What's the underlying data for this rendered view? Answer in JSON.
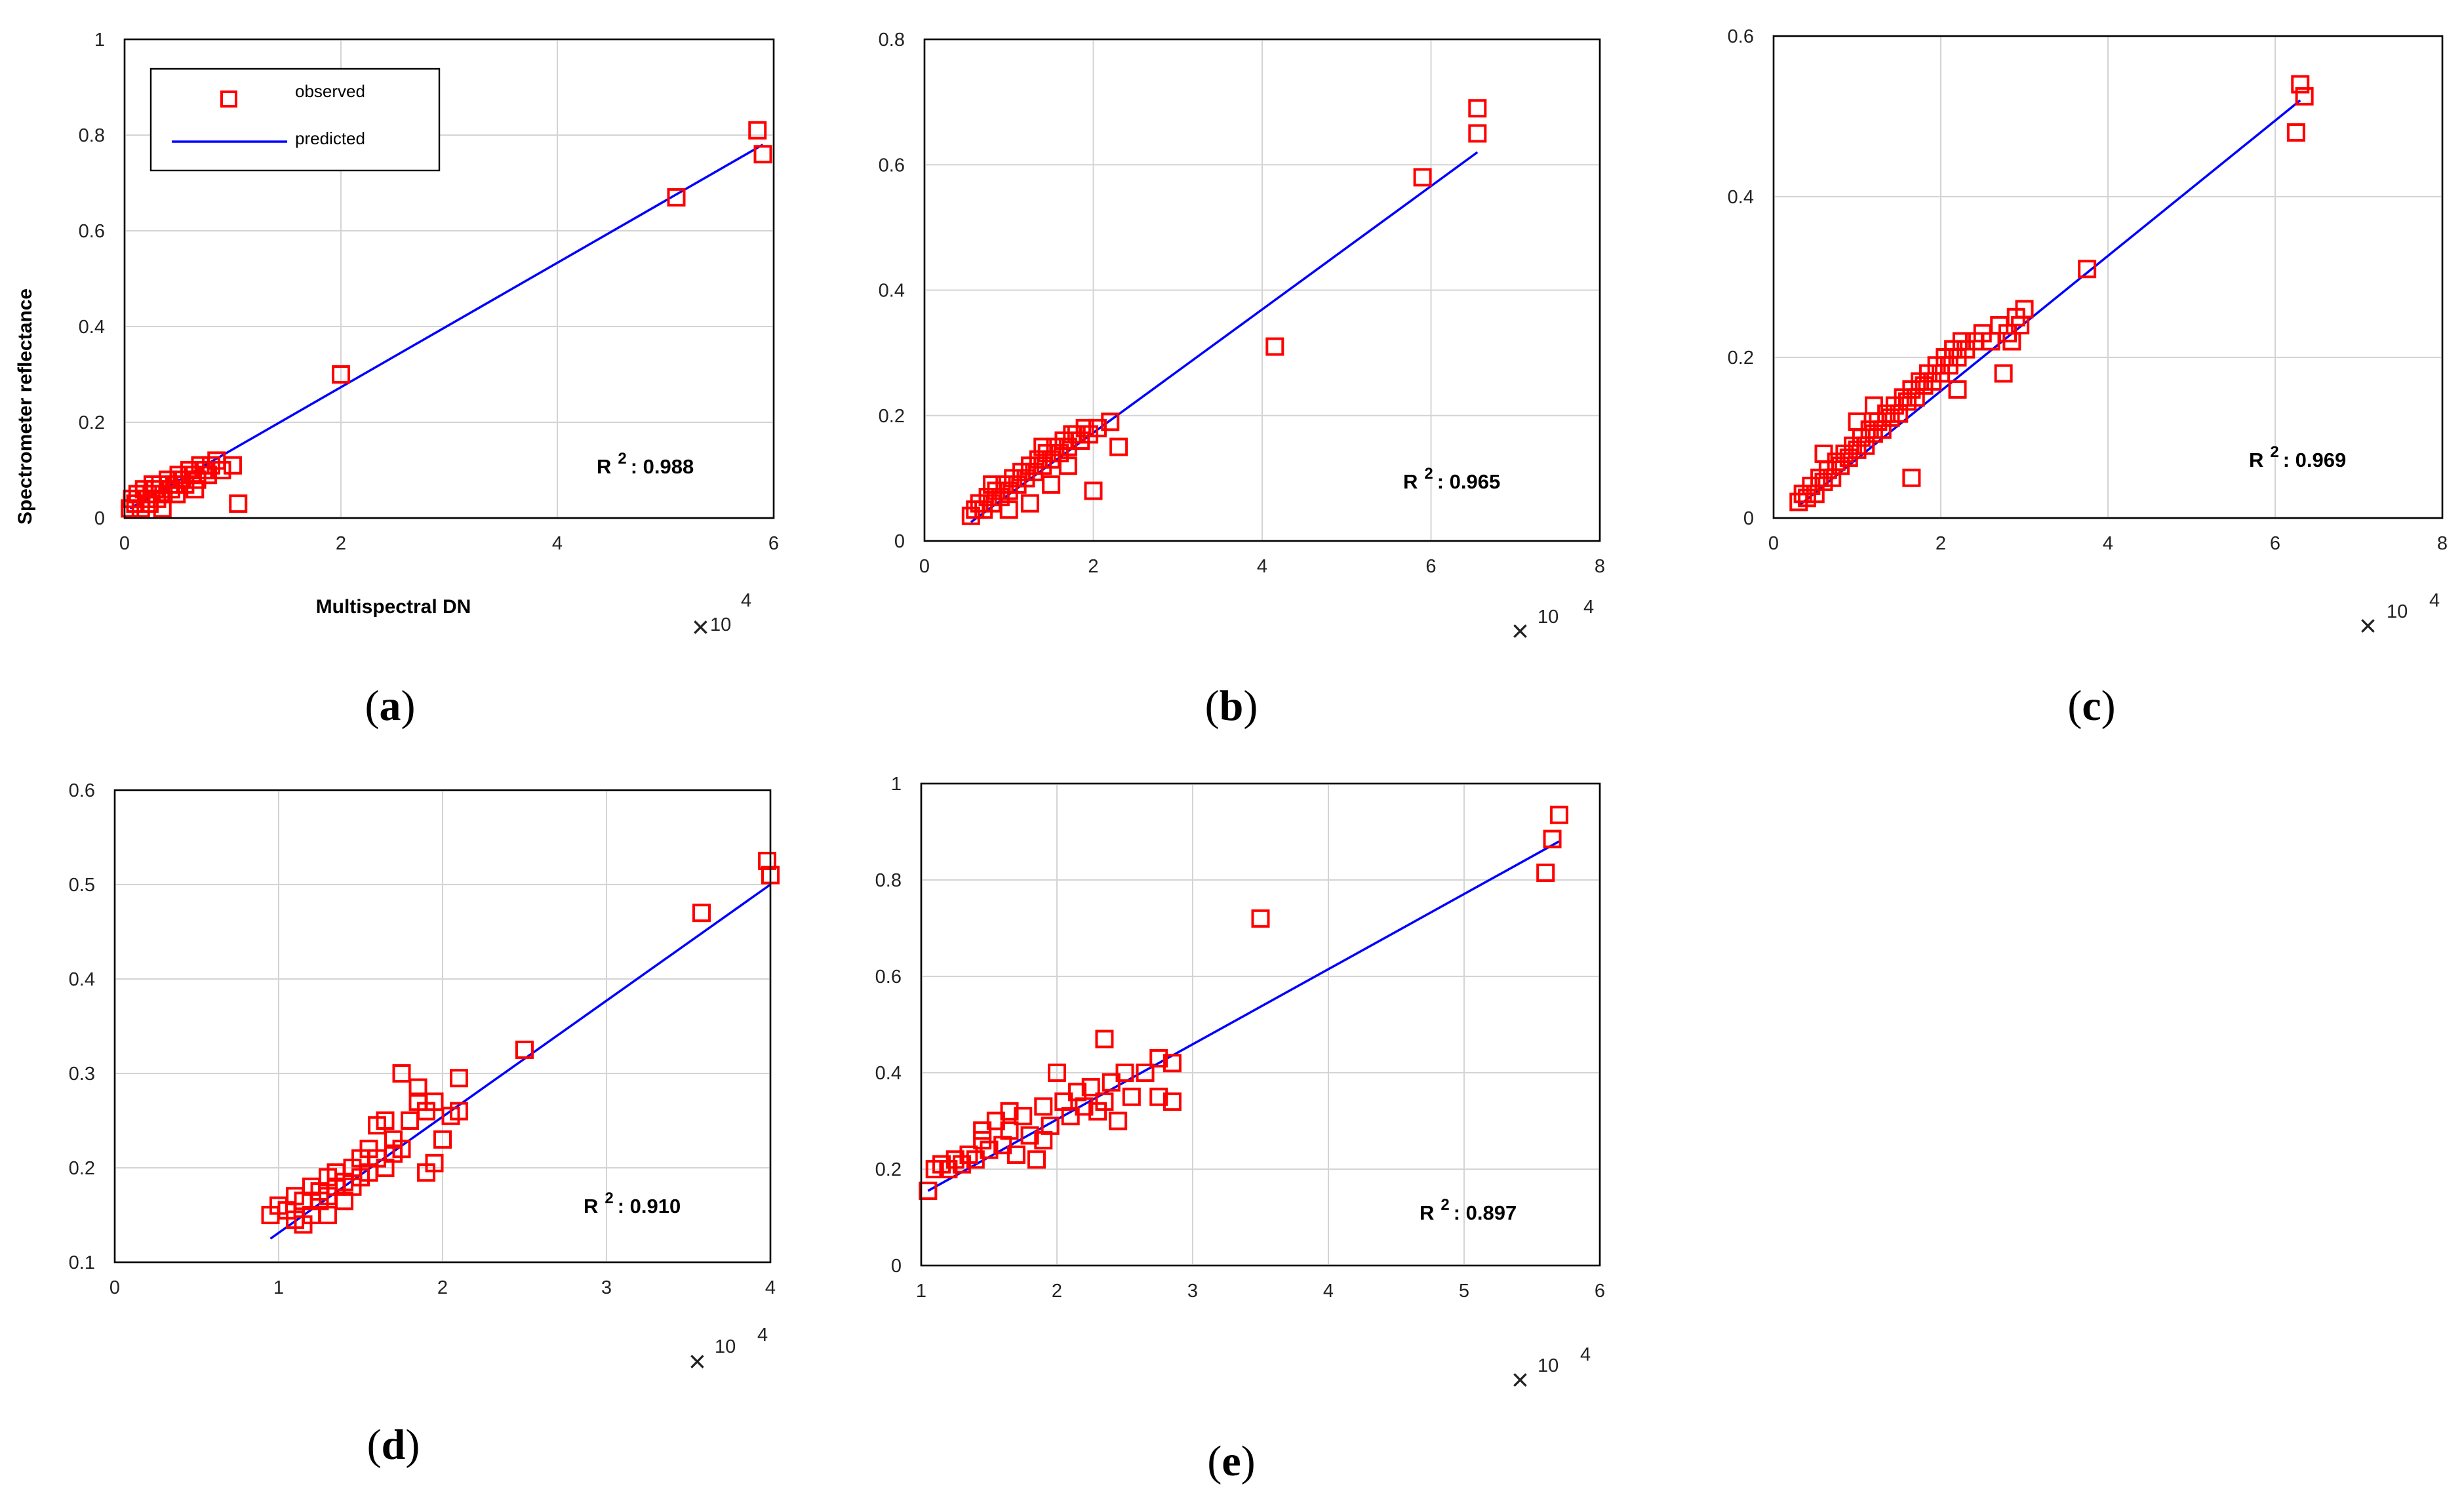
{
  "colors": {
    "observed": "#ff0000",
    "predicted": "#0000ff",
    "grid": "#d4d4d4"
  },
  "chart_data": [
    {
      "id": "a",
      "type": "scatter",
      "caption_letter": "a",
      "xlabel": "Multispectral DN",
      "ylabel": "Spectrometer reflectance",
      "x_multiplier_label": "10",
      "x_exponent": "4",
      "xlim": [
        0,
        60000
      ],
      "ylim": [
        0,
        1
      ],
      "xticks": [
        0,
        20000,
        40000,
        60000
      ],
      "xtick_labels": [
        "0",
        "2",
        "4",
        "6"
      ],
      "yticks": [
        0,
        0.2,
        0.4,
        0.6,
        0.8,
        1
      ],
      "ytick_labels": [
        "0",
        "0.2",
        "0.4",
        "0.6",
        "0.8",
        "1"
      ],
      "legend": {
        "observed": "observed",
        "predicted": "predicted",
        "position": "top-left"
      },
      "r2_label": "R",
      "r2_sup": "2",
      "r2_value": ": 0.988",
      "fit": {
        "x": [
          500,
          59000
        ],
        "y": [
          0.02,
          0.78
        ]
      },
      "observed": [
        [
          58500,
          0.81
        ],
        [
          59000,
          0.76
        ],
        [
          51000,
          0.67
        ],
        [
          20000,
          0.3
        ],
        [
          10000,
          0.11
        ],
        [
          10500,
          0.03
        ],
        [
          500,
          0.02
        ],
        [
          700,
          0.04
        ],
        [
          1000,
          0.03
        ],
        [
          1200,
          0.05
        ],
        [
          1500,
          0.02
        ],
        [
          1800,
          0.06
        ],
        [
          2000,
          0.04
        ],
        [
          2300,
          0.03
        ],
        [
          2500,
          0.05
        ],
        [
          2800,
          0.06
        ],
        [
          3000,
          0.04
        ],
        [
          3300,
          0.07
        ],
        [
          3600,
          0.05
        ],
        [
          4000,
          0.08
        ],
        [
          4300,
          0.06
        ],
        [
          4600,
          0.07
        ],
        [
          5000,
          0.09
        ],
        [
          5300,
          0.08
        ],
        [
          5600,
          0.07
        ],
        [
          6000,
          0.1
        ],
        [
          6300,
          0.09
        ],
        [
          6700,
          0.08
        ],
        [
          7000,
          0.11
        ],
        [
          7300,
          0.1
        ],
        [
          7700,
          0.09
        ],
        [
          8000,
          0.11
        ],
        [
          8500,
          0.12
        ],
        [
          9000,
          0.1
        ],
        [
          3500,
          0.02
        ],
        [
          2600,
          0.07
        ],
        [
          4800,
          0.05
        ],
        [
          6500,
          0.06
        ]
      ]
    },
    {
      "id": "b",
      "type": "scatter",
      "caption_letter": "b",
      "x_multiplier_label": "10",
      "x_exponent": "4",
      "xlim": [
        0,
        80000
      ],
      "ylim": [
        0,
        0.8
      ],
      "xticks": [
        0,
        20000,
        40000,
        60000,
        80000
      ],
      "xtick_labels": [
        "0",
        "2",
        "4",
        "6",
        "8"
      ],
      "yticks": [
        0,
        0.2,
        0.4,
        0.6,
        0.8
      ],
      "ytick_labels": [
        "0",
        "0.2",
        "0.4",
        "0.6",
        "0.8"
      ],
      "r2_label": "R",
      "r2_sup": "2",
      "r2_value": ": 0.965",
      "fit": {
        "x": [
          5500,
          65500
        ],
        "y": [
          0.03,
          0.62
        ]
      },
      "observed": [
        [
          65500,
          0.69
        ],
        [
          65500,
          0.65
        ],
        [
          59000,
          0.58
        ],
        [
          41500,
          0.31
        ],
        [
          23000,
          0.15
        ],
        [
          20000,
          0.08
        ],
        [
          22000,
          0.19
        ],
        [
          18000,
          0.17
        ],
        [
          5500,
          0.04
        ],
        [
          6000,
          0.05
        ],
        [
          6500,
          0.06
        ],
        [
          7000,
          0.05
        ],
        [
          7500,
          0.07
        ],
        [
          8000,
          0.06
        ],
        [
          8500,
          0.08
        ],
        [
          9000,
          0.07
        ],
        [
          9500,
          0.09
        ],
        [
          10000,
          0.08
        ],
        [
          10500,
          0.1
        ],
        [
          11000,
          0.09
        ],
        [
          11500,
          0.11
        ],
        [
          12000,
          0.1
        ],
        [
          12500,
          0.12
        ],
        [
          13000,
          0.11
        ],
        [
          13500,
          0.13
        ],
        [
          14000,
          0.12
        ],
        [
          14500,
          0.14
        ],
        [
          15000,
          0.13
        ],
        [
          15500,
          0.15
        ],
        [
          16000,
          0.14
        ],
        [
          16500,
          0.16
        ],
        [
          17000,
          0.15
        ],
        [
          17500,
          0.17
        ],
        [
          18500,
          0.16
        ],
        [
          19000,
          0.18
        ],
        [
          19500,
          0.17
        ],
        [
          20500,
          0.18
        ],
        [
          12500,
          0.06
        ],
        [
          15000,
          0.09
        ],
        [
          10000,
          0.05
        ],
        [
          8000,
          0.09
        ],
        [
          14000,
          0.15
        ],
        [
          17000,
          0.12
        ]
      ]
    },
    {
      "id": "c",
      "type": "scatter",
      "caption_letter": "c",
      "x_multiplier_label": "10",
      "x_exponent": "4",
      "xlim": [
        0,
        80000
      ],
      "ylim": [
        0,
        0.6
      ],
      "xticks": [
        0,
        20000,
        40000,
        60000,
        80000
      ],
      "xtick_labels": [
        "0",
        "2",
        "4",
        "6",
        "8"
      ],
      "yticks": [
        0,
        0.2,
        0.4,
        0.6
      ],
      "ytick_labels": [
        "0",
        "0.2",
        "0.4",
        "0.6"
      ],
      "r2_label": "R",
      "r2_sup": "2",
      "r2_value": ": 0.969",
      "fit": {
        "x": [
          3000,
          63000
        ],
        "y": [
          0.015,
          0.52
        ]
      },
      "observed": [
        [
          63000,
          0.54
        ],
        [
          63500,
          0.525
        ],
        [
          62500,
          0.48
        ],
        [
          37500,
          0.31
        ],
        [
          30000,
          0.26
        ],
        [
          29000,
          0.25
        ],
        [
          28500,
          0.22
        ],
        [
          27500,
          0.18
        ],
        [
          16500,
          0.05
        ],
        [
          3000,
          0.02
        ],
        [
          3500,
          0.03
        ],
        [
          4000,
          0.025
        ],
        [
          4500,
          0.04
        ],
        [
          5000,
          0.03
        ],
        [
          5500,
          0.05
        ],
        [
          6000,
          0.045
        ],
        [
          6500,
          0.06
        ],
        [
          7000,
          0.05
        ],
        [
          7500,
          0.07
        ],
        [
          8000,
          0.065
        ],
        [
          8500,
          0.08
        ],
        [
          9000,
          0.075
        ],
        [
          9500,
          0.09
        ],
        [
          10000,
          0.085
        ],
        [
          10500,
          0.1
        ],
        [
          11000,
          0.09
        ],
        [
          11500,
          0.11
        ],
        [
          12000,
          0.105
        ],
        [
          12500,
          0.12
        ],
        [
          13000,
          0.11
        ],
        [
          13500,
          0.13
        ],
        [
          14000,
          0.125
        ],
        [
          14500,
          0.14
        ],
        [
          15000,
          0.13
        ],
        [
          15500,
          0.15
        ],
        [
          16000,
          0.145
        ],
        [
          16500,
          0.16
        ],
        [
          17000,
          0.15
        ],
        [
          17500,
          0.17
        ],
        [
          18000,
          0.165
        ],
        [
          18500,
          0.18
        ],
        [
          19000,
          0.17
        ],
        [
          19500,
          0.19
        ],
        [
          20000,
          0.18
        ],
        [
          20500,
          0.2
        ],
        [
          21000,
          0.19
        ],
        [
          21500,
          0.21
        ],
        [
          22000,
          0.2
        ],
        [
          22500,
          0.22
        ],
        [
          23000,
          0.21
        ],
        [
          24000,
          0.22
        ],
        [
          25000,
          0.23
        ],
        [
          26000,
          0.22
        ],
        [
          27000,
          0.24
        ],
        [
          28000,
          0.23
        ],
        [
          29500,
          0.24
        ],
        [
          12000,
          0.14
        ],
        [
          10000,
          0.12
        ],
        [
          6000,
          0.08
        ],
        [
          22000,
          0.16
        ]
      ]
    },
    {
      "id": "d",
      "type": "scatter",
      "caption_letter": "d",
      "x_multiplier_label": "10",
      "x_exponent": "4",
      "xlim": [
        0,
        40000
      ],
      "ylim": [
        0.1,
        0.6
      ],
      "xticks": [
        0,
        10000,
        20000,
        30000,
        40000
      ],
      "xtick_labels": [
        "0",
        "1",
        "2",
        "3",
        "4"
      ],
      "yticks": [
        0.1,
        0.2,
        0.3,
        0.4,
        0.5,
        0.6
      ],
      "ytick_labels": [
        "0.1",
        "0.2",
        "0.3",
        "0.4",
        "0.5",
        "0.6"
      ],
      "r2_label": "R",
      "r2_sup": "2",
      "r2_value": ": 0.910",
      "fit": {
        "x": [
          9500,
          40000
        ],
        "y": [
          0.125,
          0.5
        ]
      },
      "observed": [
        [
          39800,
          0.525
        ],
        [
          40000,
          0.51
        ],
        [
          35800,
          0.47
        ],
        [
          25000,
          0.325
        ],
        [
          21000,
          0.295
        ],
        [
          21000,
          0.26
        ],
        [
          20500,
          0.255
        ],
        [
          20000,
          0.23
        ],
        [
          19500,
          0.205
        ],
        [
          19000,
          0.195
        ],
        [
          18500,
          0.285
        ],
        [
          17500,
          0.3
        ],
        [
          9500,
          0.15
        ],
        [
          10000,
          0.16
        ],
        [
          10500,
          0.155
        ],
        [
          11000,
          0.17
        ],
        [
          11500,
          0.14
        ],
        [
          11500,
          0.165
        ],
        [
          12000,
          0.15
        ],
        [
          12000,
          0.18
        ],
        [
          12500,
          0.165
        ],
        [
          12500,
          0.175
        ],
        [
          13000,
          0.19
        ],
        [
          13000,
          0.17
        ],
        [
          13500,
          0.18
        ],
        [
          13500,
          0.195
        ],
        [
          14000,
          0.185
        ],
        [
          14000,
          0.165
        ],
        [
          14500,
          0.2
        ],
        [
          14500,
          0.18
        ],
        [
          15000,
          0.19
        ],
        [
          15000,
          0.21
        ],
        [
          15500,
          0.195
        ],
        [
          15500,
          0.22
        ],
        [
          16000,
          0.21
        ],
        [
          16000,
          0.245
        ],
        [
          16500,
          0.2
        ],
        [
          16500,
          0.25
        ],
        [
          17000,
          0.215
        ],
        [
          17000,
          0.23
        ],
        [
          17500,
          0.22
        ],
        [
          18000,
          0.25
        ],
        [
          18500,
          0.27
        ],
        [
          19000,
          0.26
        ],
        [
          19500,
          0.27
        ],
        [
          11000,
          0.145
        ],
        [
          13000,
          0.15
        ]
      ]
    },
    {
      "id": "e",
      "type": "scatter",
      "caption_letter": "e",
      "x_multiplier_label": "10",
      "x_exponent": "4",
      "xlim": [
        10000,
        60000
      ],
      "ylim": [
        0,
        1
      ],
      "xticks": [
        10000,
        20000,
        30000,
        40000,
        50000,
        60000
      ],
      "xtick_labels": [
        "1",
        "2",
        "3",
        "4",
        "5",
        "6"
      ],
      "yticks": [
        0,
        0.2,
        0.4,
        0.6,
        0.8,
        1
      ],
      "ytick_labels": [
        "0",
        "0.2",
        "0.4",
        "0.6",
        "0.8",
        "1"
      ],
      "r2_label": "R",
      "r2_sup": "2",
      "r2_value": ": 0.897",
      "fit": {
        "x": [
          10500,
          57000
        ],
        "y": [
          0.155,
          0.88
        ]
      },
      "observed": [
        [
          57000,
          0.935
        ],
        [
          56500,
          0.885
        ],
        [
          56000,
          0.815
        ],
        [
          35000,
          0.72
        ],
        [
          28500,
          0.42
        ],
        [
          28500,
          0.34
        ],
        [
          27500,
          0.43
        ],
        [
          27500,
          0.35
        ],
        [
          26500,
          0.4
        ],
        [
          25500,
          0.35
        ],
        [
          25000,
          0.4
        ],
        [
          24500,
          0.3
        ],
        [
          23500,
          0.47
        ],
        [
          23000,
          0.32
        ],
        [
          20000,
          0.4
        ],
        [
          10500,
          0.155
        ],
        [
          11000,
          0.2
        ],
        [
          11500,
          0.21
        ],
        [
          12000,
          0.2
        ],
        [
          12500,
          0.22
        ],
        [
          13000,
          0.21
        ],
        [
          13500,
          0.23
        ],
        [
          14000,
          0.22
        ],
        [
          14500,
          0.26
        ],
        [
          15000,
          0.24
        ],
        [
          15500,
          0.3
        ],
        [
          16000,
          0.25
        ],
        [
          16500,
          0.28
        ],
        [
          17000,
          0.23
        ],
        [
          17500,
          0.31
        ],
        [
          18000,
          0.27
        ],
        [
          18500,
          0.22
        ],
        [
          19000,
          0.33
        ],
        [
          19500,
          0.29
        ],
        [
          20500,
          0.34
        ],
        [
          21000,
          0.31
        ],
        [
          21500,
          0.36
        ],
        [
          22000,
          0.33
        ],
        [
          22500,
          0.37
        ],
        [
          23500,
          0.34
        ],
        [
          24000,
          0.38
        ],
        [
          19000,
          0.26
        ],
        [
          16500,
          0.32
        ],
        [
          14500,
          0.28
        ]
      ]
    }
  ]
}
